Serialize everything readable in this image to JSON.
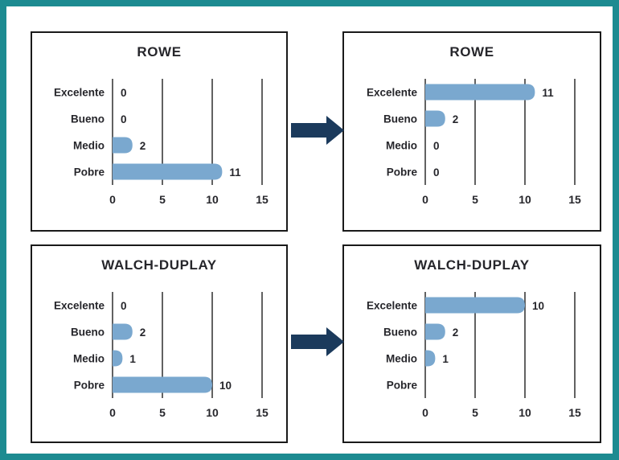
{
  "colors": {
    "frame_border": "#1d8b91",
    "box_border": "#1a1a1a",
    "bar": "#7aa8cf",
    "arrow": "#1b3a5c",
    "text": "#26262b",
    "grid": "#1f1f1f",
    "background": "#ffffff"
  },
  "connectors": [
    {
      "icon": "right-block-arrow",
      "from": "rowe-before",
      "to": "rowe-after"
    },
    {
      "icon": "right-block-arrow",
      "from": "walch-duplay-before",
      "to": "walch-duplay-after"
    }
  ],
  "chart_data": [
    {
      "id": "rowe-before",
      "type": "bar",
      "orientation": "horizontal",
      "title": "ROWE",
      "categories": [
        "Excelente",
        "Bueno",
        "Medio",
        "Pobre"
      ],
      "values": [
        0,
        0,
        2,
        11
      ],
      "data_labels": [
        "0",
        "0",
        "2",
        "11"
      ],
      "xlim": [
        0,
        15
      ],
      "xticks": [
        0,
        5,
        10,
        15
      ],
      "grid": true,
      "legend": false
    },
    {
      "id": "rowe-after",
      "type": "bar",
      "orientation": "horizontal",
      "title": "ROWE",
      "categories": [
        "Excelente",
        "Bueno",
        "Medio",
        "Pobre"
      ],
      "values": [
        11,
        2,
        0,
        0
      ],
      "data_labels": [
        "11",
        "2",
        "0",
        "0"
      ],
      "xlim": [
        0,
        15
      ],
      "xticks": [
        0,
        5,
        10,
        15
      ],
      "grid": true,
      "legend": false
    },
    {
      "id": "walch-duplay-before",
      "type": "bar",
      "orientation": "horizontal",
      "title": "WALCH-DUPLAY",
      "categories": [
        "Excelente",
        "Bueno",
        "Medio",
        "Pobre"
      ],
      "values": [
        0,
        2,
        1,
        10
      ],
      "data_labels": [
        "0",
        "2",
        "1",
        "10"
      ],
      "xlim": [
        0,
        15
      ],
      "xticks": [
        0,
        5,
        10,
        15
      ],
      "grid": true,
      "legend": false
    },
    {
      "id": "walch-duplay-after",
      "type": "bar",
      "orientation": "horizontal",
      "title": "WALCH-DUPLAY",
      "categories": [
        "Excelente",
        "Bueno",
        "Medio",
        "Pobre"
      ],
      "values": [
        10,
        2,
        1,
        0
      ],
      "data_labels": [
        "10",
        "2",
        "1",
        ""
      ],
      "xlim": [
        0,
        15
      ],
      "xticks": [
        0,
        5,
        10,
        15
      ],
      "grid": true,
      "legend": false
    }
  ]
}
